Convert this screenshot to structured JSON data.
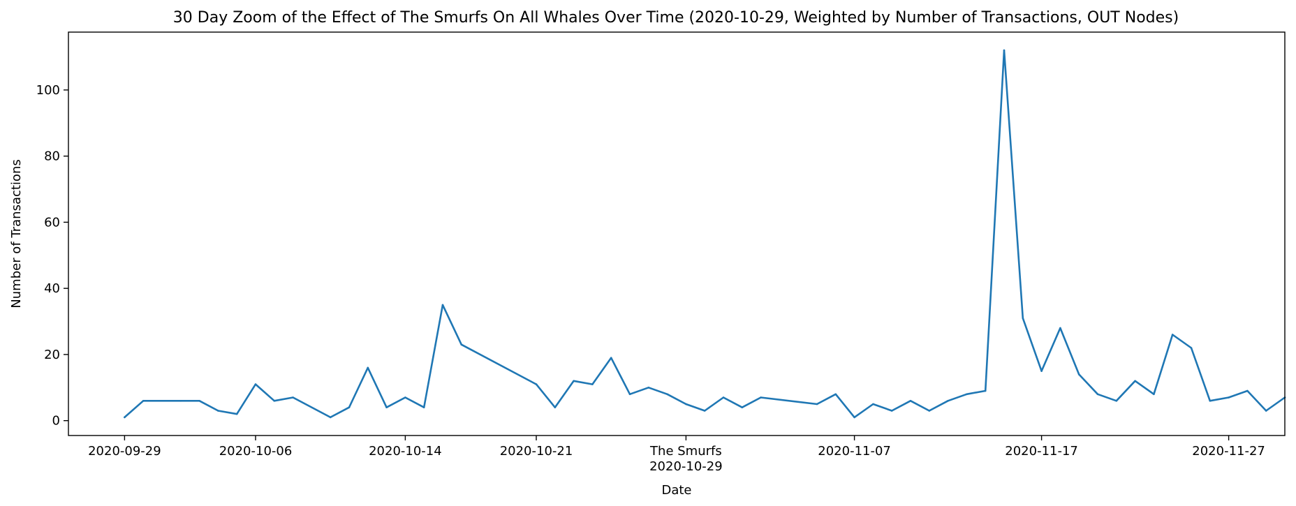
{
  "chart_data": {
    "type": "line",
    "title": "30 Day Zoom of the Effect of The Smurfs On All Whales Over Time (2020-10-29, Weighted by Number of Transactions, OUT Nodes)",
    "xlabel": "Date",
    "ylabel": "Number of Transactions",
    "xlim": [
      "2020-09-26",
      "2020-11-30"
    ],
    "ylim": [
      -4.5,
      117.5
    ],
    "yticks": [
      0,
      20,
      40,
      60,
      80,
      100
    ],
    "xticks": [
      {
        "date": "2020-09-29",
        "label": "2020-09-29"
      },
      {
        "date": "2020-10-06",
        "label": "2020-10-06"
      },
      {
        "date": "2020-10-14",
        "label": "2020-10-14"
      },
      {
        "date": "2020-10-21",
        "label": "2020-10-21"
      },
      {
        "date": "2020-10-29",
        "label": "The Smurfs\n2020-10-29"
      },
      {
        "date": "2020-11-07",
        "label": "2020-11-07"
      },
      {
        "date": "2020-11-17",
        "label": "2020-11-17"
      },
      {
        "date": "2020-11-27",
        "label": "2020-11-27"
      }
    ],
    "grid": false,
    "series": [
      {
        "color": "#1f77b4",
        "points": [
          [
            "2020-09-29",
            1
          ],
          [
            "2020-09-30",
            6
          ],
          [
            "2020-10-02",
            6
          ],
          [
            "2020-10-03",
            6
          ],
          [
            "2020-10-04",
            3
          ],
          [
            "2020-10-05",
            2
          ],
          [
            "2020-10-06",
            11
          ],
          [
            "2020-10-07",
            6
          ],
          [
            "2020-10-08",
            7
          ],
          [
            "2020-10-10",
            1
          ],
          [
            "2020-10-11",
            4
          ],
          [
            "2020-10-12",
            16
          ],
          [
            "2020-10-13",
            4
          ],
          [
            "2020-10-14",
            7
          ],
          [
            "2020-10-15",
            4
          ],
          [
            "2020-10-16",
            35
          ],
          [
            "2020-10-17",
            23
          ],
          [
            "2020-10-21",
            11
          ],
          [
            "2020-10-22",
            4
          ],
          [
            "2020-10-23",
            12
          ],
          [
            "2020-10-24",
            11
          ],
          [
            "2020-10-25",
            19
          ],
          [
            "2020-10-26",
            8
          ],
          [
            "2020-10-27",
            10
          ],
          [
            "2020-10-28",
            8
          ],
          [
            "2020-10-29",
            5
          ],
          [
            "2020-10-30",
            3
          ],
          [
            "2020-10-31",
            7
          ],
          [
            "2020-11-01",
            4
          ],
          [
            "2020-11-02",
            7
          ],
          [
            "2020-11-05",
            5
          ],
          [
            "2020-11-06",
            8
          ],
          [
            "2020-11-07",
            1
          ],
          [
            "2020-11-08",
            5
          ],
          [
            "2020-11-09",
            3
          ],
          [
            "2020-11-10",
            6
          ],
          [
            "2020-11-11",
            3
          ],
          [
            "2020-11-12",
            6
          ],
          [
            "2020-11-13",
            8
          ],
          [
            "2020-11-14",
            9
          ],
          [
            "2020-11-15",
            112
          ],
          [
            "2020-11-16",
            31
          ],
          [
            "2020-11-17",
            15
          ],
          [
            "2020-11-18",
            28
          ],
          [
            "2020-11-19",
            14
          ],
          [
            "2020-11-20",
            8
          ],
          [
            "2020-11-21",
            6
          ],
          [
            "2020-11-22",
            12
          ],
          [
            "2020-11-23",
            8
          ],
          [
            "2020-11-24",
            26
          ],
          [
            "2020-11-25",
            22
          ],
          [
            "2020-11-26",
            6
          ],
          [
            "2020-11-27",
            7
          ],
          [
            "2020-11-28",
            9
          ],
          [
            "2020-11-29",
            3
          ],
          [
            "2020-11-30",
            7
          ]
        ]
      }
    ]
  }
}
